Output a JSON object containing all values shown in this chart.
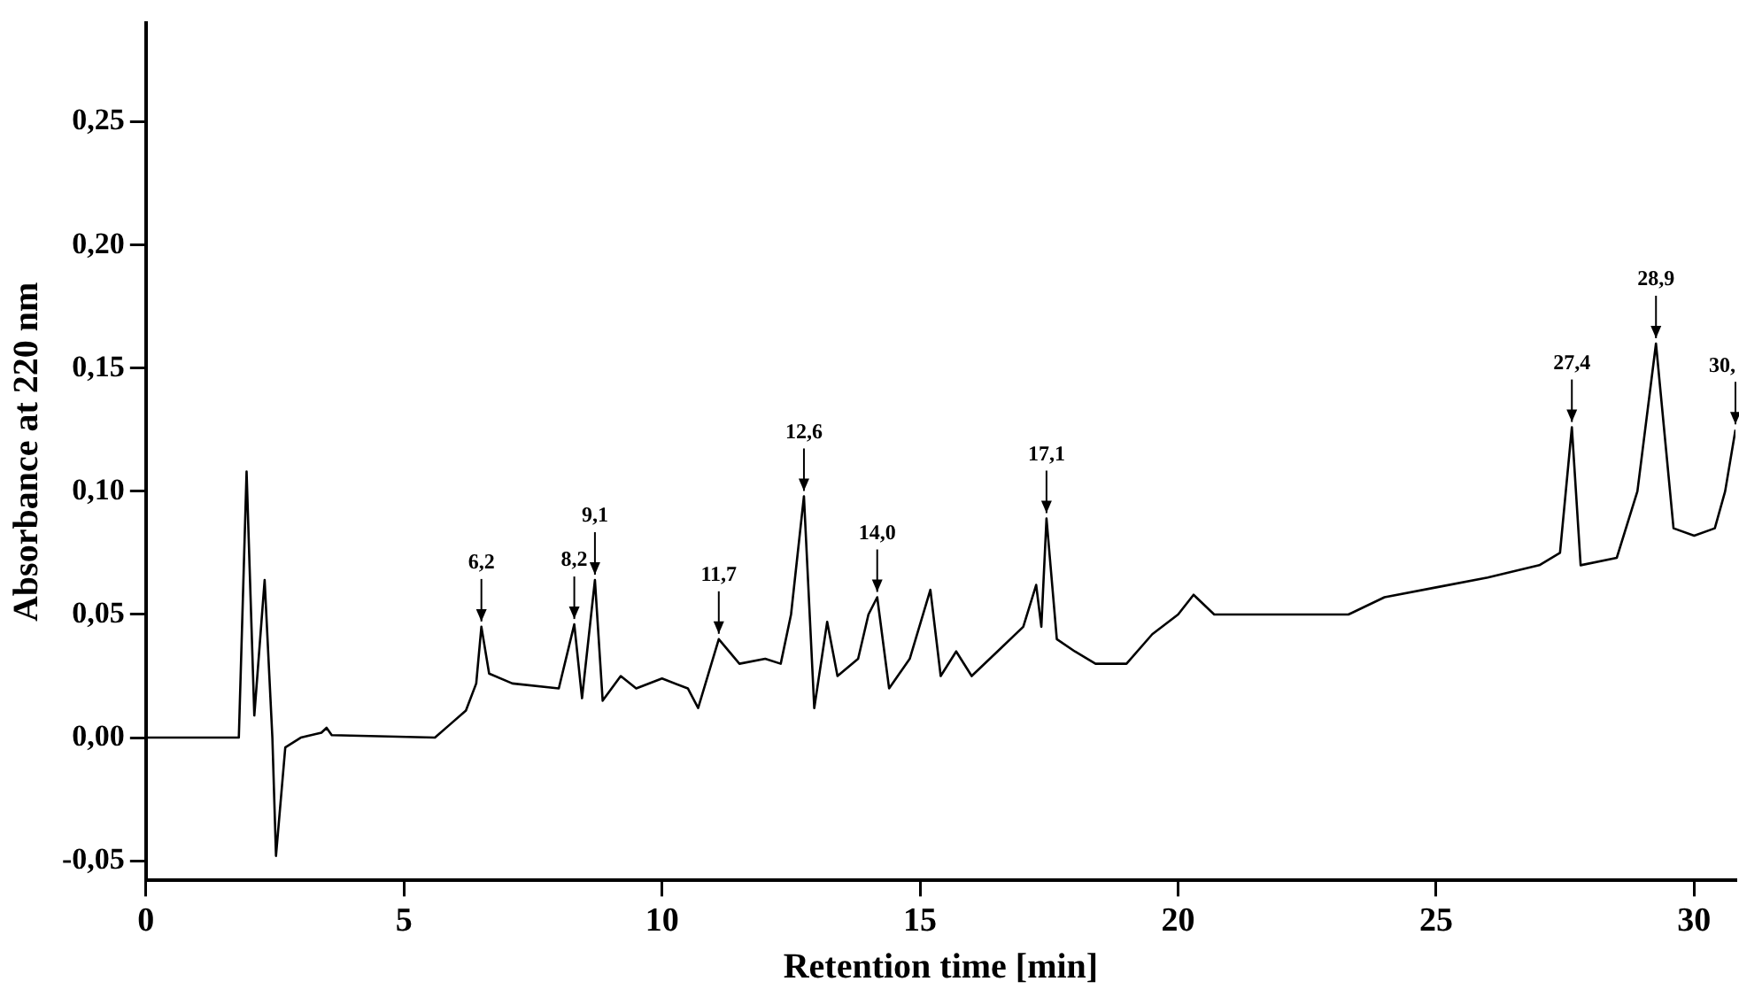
{
  "chart_data": {
    "type": "line",
    "xlabel": "Retention time [min]",
    "ylabel": "Absorbance at 220 nm",
    "x": [
      0,
      1.8,
      1.95,
      2.1,
      2.3,
      2.45,
      2.52,
      2.7,
      3.0,
      3.4,
      3.5,
      3.6,
      5.6,
      6.2,
      6.4,
      6.5,
      6.65,
      7.1,
      8.0,
      8.3,
      8.45,
      8.7,
      8.85,
      9.2,
      9.5,
      10.0,
      10.5,
      10.7,
      11.1,
      11.5,
      12.0,
      12.3,
      12.5,
      12.75,
      12.95,
      13.2,
      13.4,
      13.8,
      14.0,
      14.17,
      14.4,
      14.8,
      15.2,
      15.4,
      15.7,
      16.0,
      16.5,
      17.0,
      17.25,
      17.35,
      17.45,
      17.65,
      18.0,
      18.4,
      19.0,
      19.5,
      20.0,
      20.3,
      20.7,
      21.5,
      22.5,
      23.3,
      24.0,
      25.0,
      26.0,
      27.0,
      27.4,
      27.63,
      27.8,
      28.5,
      28.9,
      29.26,
      29.6,
      30.0,
      30.4,
      30.6,
      30.8
    ],
    "values": [
      0,
      0,
      0.108,
      0.009,
      0.064,
      0.0,
      -0.048,
      -0.004,
      0,
      0.002,
      0.004,
      0.001,
      0,
      0.011,
      0.022,
      0.045,
      0.026,
      0.022,
      0.02,
      0.046,
      0.016,
      0.064,
      0.015,
      0.025,
      0.02,
      0.024,
      0.02,
      0.012,
      0.04,
      0.03,
      0.032,
      0.03,
      0.05,
      0.098,
      0.012,
      0.047,
      0.025,
      0.032,
      0.05,
      0.057,
      0.02,
      0.032,
      0.06,
      0.025,
      0.035,
      0.025,
      0.035,
      0.045,
      0.062,
      0.045,
      0.089,
      0.04,
      0.035,
      0.03,
      0.03,
      0.042,
      0.05,
      0.058,
      0.05,
      0.05,
      0.05,
      0.05,
      0.057,
      0.061,
      0.065,
      0.07,
      0.075,
      0.126,
      0.07,
      0.073,
      0.1,
      0.16,
      0.085,
      0.082,
      0.085,
      0.1,
      0.125
    ],
    "color": "#000000",
    "marker": "none",
    "grid": false,
    "legend": false,
    "xlim": [
      0,
      30.8
    ],
    "xticks": [
      0,
      5,
      10,
      15,
      20,
      25,
      30
    ],
    "ylim": [
      -0.058,
      0.29
    ],
    "yticks": [
      {
        "value": -0.05,
        "label": "-0,05"
      },
      {
        "value": 0,
        "label": "0,00"
      },
      {
        "value": 0.05,
        "label": "0,05"
      },
      {
        "value": 0.1,
        "label": "0,10"
      },
      {
        "value": 0.15,
        "label": "0,15"
      },
      {
        "value": 0.2,
        "label": "0,20"
      },
      {
        "value": 0.25,
        "label": "0,25"
      }
    ],
    "annotations": [
      {
        "text": "6,2",
        "x": 6.5,
        "y": 0.045
      },
      {
        "text": "8,2",
        "x": 8.3,
        "y": 0.046
      },
      {
        "text": "9,1",
        "x": 8.7,
        "y": 0.064
      },
      {
        "text": "11,7",
        "x": 11.1,
        "y": 0.04
      },
      {
        "text": "12,6",
        "x": 12.75,
        "y": 0.098
      },
      {
        "text": "14,0",
        "x": 14.17,
        "y": 0.057
      },
      {
        "text": "17,1",
        "x": 17.45,
        "y": 0.089
      },
      {
        "text": "27,4",
        "x": 27.63,
        "y": 0.126
      },
      {
        "text": "28,9",
        "x": 29.26,
        "y": 0.16
      },
      {
        "text": "30,",
        "x": 30.8,
        "y": 0.125
      }
    ]
  }
}
